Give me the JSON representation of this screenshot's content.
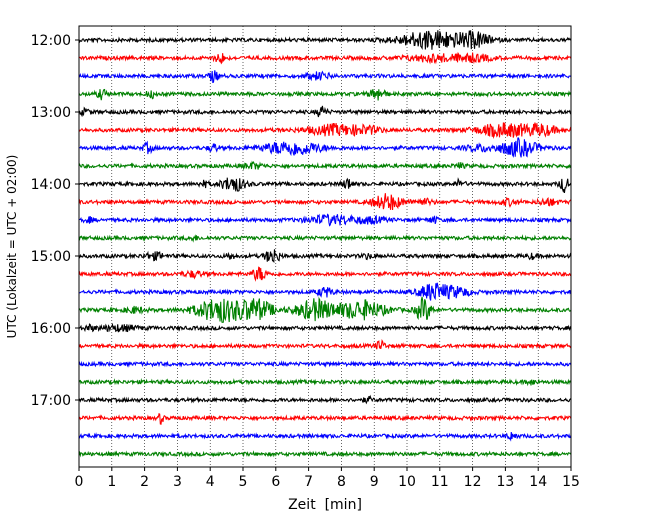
{
  "chart_data": {
    "type": "line",
    "subtype": "helicorder",
    "title": "",
    "xlabel": "Zeit  [min]",
    "ylabel": "UTC (Lokalzeit = UTC + 02:00)",
    "xlim": [
      0,
      15
    ],
    "xticks": [
      0,
      1,
      2,
      3,
      4,
      5,
      6,
      7,
      8,
      9,
      10,
      11,
      12,
      13,
      14,
      15
    ],
    "minutes_per_line": 15,
    "y_tick_labels": [
      "12:00",
      "13:00",
      "14:00",
      "15:00",
      "16:00",
      "17:00"
    ],
    "lines_per_hour": 4,
    "trace_colors": [
      "#000000",
      "#ff0000",
      "#0000ff",
      "#008000"
    ],
    "grid": "vertical dotted lines at each minute",
    "traces": [
      {
        "start": "12:00",
        "bursts": [
          [
            10.8,
            0.7,
            1.0
          ],
          [
            12.1,
            0.3,
            0.7
          ]
        ]
      },
      {
        "start": "12:15",
        "bursts": [
          [
            4.3,
            0.1,
            0.6
          ],
          [
            10.8,
            0.6,
            0.35
          ],
          [
            12.0,
            0.4,
            0.35
          ]
        ]
      },
      {
        "start": "12:30",
        "bursts": [
          [
            4.1,
            0.1,
            0.55
          ],
          [
            7.3,
            0.25,
            0.35
          ]
        ]
      },
      {
        "start": "12:45",
        "bursts": [
          [
            0.7,
            0.1,
            0.5
          ],
          [
            2.2,
            0.1,
            0.35
          ],
          [
            9.1,
            0.15,
            0.7
          ]
        ]
      },
      {
        "start": "13:00",
        "bursts": [
          [
            7.4,
            0.1,
            0.6
          ],
          [
            0.2,
            0.1,
            0.3
          ]
        ]
      },
      {
        "start": "13:15",
        "bursts": [
          [
            7.8,
            0.6,
            0.55
          ],
          [
            8.8,
            0.3,
            0.3
          ],
          [
            13.0,
            0.6,
            0.7
          ],
          [
            14.1,
            0.3,
            0.5
          ]
        ]
      },
      {
        "start": "13:30",
        "bursts": [
          [
            2.1,
            0.1,
            0.5
          ],
          [
            4.1,
            0.1,
            0.4
          ],
          [
            6.5,
            0.6,
            0.75
          ],
          [
            13.4,
            0.4,
            0.9
          ],
          [
            12.2,
            0.3,
            0.3
          ]
        ]
      },
      {
        "start": "13:45",
        "bursts": [
          [
            5.3,
            0.2,
            0.3
          ],
          [
            11.6,
            0.1,
            0.25
          ]
        ]
      },
      {
        "start": "14:00",
        "bursts": [
          [
            4.7,
            0.25,
            0.8
          ],
          [
            3.8,
            0.1,
            0.3
          ],
          [
            8.2,
            0.1,
            0.6
          ],
          [
            11.6,
            0.1,
            0.4
          ],
          [
            14.8,
            0.1,
            0.8
          ]
        ]
      },
      {
        "start": "14:15",
        "bursts": [
          [
            9.4,
            0.3,
            0.85
          ],
          [
            10.5,
            0.2,
            0.3
          ],
          [
            13.1,
            0.2,
            0.3
          ],
          [
            14.3,
            0.2,
            0.35
          ]
        ]
      },
      {
        "start": "14:30",
        "bursts": [
          [
            7.7,
            0.5,
            0.5
          ],
          [
            8.9,
            0.3,
            0.3
          ],
          [
            10.8,
            0.1,
            0.35
          ],
          [
            0.3,
            0.1,
            0.25
          ]
        ]
      },
      {
        "start": "14:45",
        "bursts": [
          [
            3.5,
            0.1,
            0.2
          ]
        ]
      },
      {
        "start": "15:00",
        "bursts": [
          [
            5.9,
            0.15,
            0.8
          ],
          [
            2.3,
            0.2,
            0.35
          ],
          [
            4.6,
            0.1,
            0.3
          ],
          [
            8.8,
            0.1,
            0.25
          ],
          [
            13.8,
            0.1,
            0.25
          ]
        ]
      },
      {
        "start": "15:15",
        "bursts": [
          [
            5.5,
            0.15,
            0.7
          ],
          [
            3.5,
            0.2,
            0.3
          ]
        ]
      },
      {
        "start": "15:30",
        "bursts": [
          [
            10.8,
            0.3,
            0.9
          ],
          [
            11.5,
            0.3,
            0.5
          ],
          [
            7.5,
            0.15,
            0.5
          ]
        ]
      },
      {
        "start": "15:45",
        "bursts": [
          [
            4.3,
            0.5,
            1.3
          ],
          [
            5.4,
            0.35,
            1.1
          ],
          [
            7.2,
            0.4,
            1.1
          ],
          [
            8.6,
            0.5,
            1.0
          ],
          [
            10.5,
            0.15,
            1.3
          ],
          [
            1.7,
            0.2,
            0.3
          ]
        ]
      },
      {
        "start": "16:00",
        "bursts": [
          [
            1.2,
            0.4,
            0.3
          ],
          [
            0.3,
            0.1,
            0.3
          ]
        ]
      },
      {
        "start": "16:15",
        "bursts": [
          [
            9.2,
            0.1,
            0.5
          ]
        ]
      },
      {
        "start": "16:30",
        "bursts": []
      },
      {
        "start": "16:45",
        "bursts": [
          [
            13.8,
            0.1,
            0.25
          ]
        ]
      },
      {
        "start": "17:00",
        "bursts": [
          [
            8.8,
            0.1,
            0.25
          ]
        ]
      },
      {
        "start": "17:15",
        "bursts": [
          [
            2.5,
            0.05,
            0.6
          ]
        ]
      },
      {
        "start": "17:30",
        "bursts": [
          [
            13.2,
            0.1,
            0.4
          ]
        ]
      },
      {
        "start": "17:45",
        "bursts": []
      }
    ]
  }
}
